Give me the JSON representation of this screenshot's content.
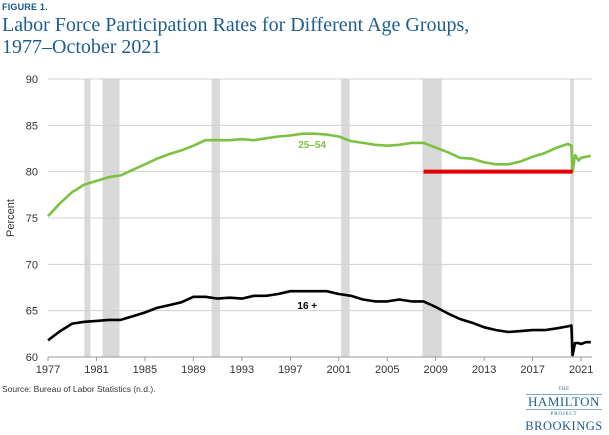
{
  "figure_label": "FIGURE 1.",
  "title_line1": "Labor Force Participation Rates for Different Age Groups,",
  "title_line2": "1977–October 2021",
  "source": "Source: Bureau of Labor Statistics (n.d.).",
  "logo": {
    "the": "THE",
    "hamilton": "HAMILTON",
    "project": "PROJECT",
    "brookings": "BROOKINGS"
  },
  "chart_data": {
    "type": "line",
    "xlabel": "",
    "ylabel": "Percent",
    "xlim": [
      1977,
      2021.9
    ],
    "ylim": [
      60,
      90
    ],
    "x_ticks": [
      1977,
      1981,
      1985,
      1989,
      1993,
      1997,
      2001,
      2005,
      2009,
      2013,
      2017,
      2021
    ],
    "y_ticks": [
      60,
      65,
      70,
      75,
      80,
      85,
      90
    ],
    "grid": "horizontal",
    "recessions": [
      [
        1980.0,
        1980.5
      ],
      [
        1981.5,
        1982.9
      ],
      [
        1990.5,
        1991.2
      ],
      [
        2001.2,
        2001.9
      ],
      [
        2007.9,
        2009.5
      ],
      [
        2020.1,
        2020.4
      ]
    ],
    "reference_line": {
      "y": 80.0,
      "x_start": 2008.0,
      "x_end": 2020.3,
      "color": "#e00000"
    },
    "series": [
      {
        "name": "25–54",
        "color": "#7cc242",
        "x": [
          1977.0,
          1978.0,
          1979.0,
          1980.0,
          1981.0,
          1982.0,
          1983.0,
          1984.0,
          1985.0,
          1986.0,
          1987.0,
          1988.0,
          1989.0,
          1990.0,
          1991.0,
          1992.0,
          1993.0,
          1994.0,
          1995.0,
          1996.0,
          1997.0,
          1998.0,
          1999.0,
          2000.0,
          2001.0,
          2002.0,
          2003.0,
          2004.0,
          2005.0,
          2006.0,
          2007.0,
          2008.0,
          2009.0,
          2010.0,
          2011.0,
          2012.0,
          2013.0,
          2014.0,
          2015.0,
          2016.0,
          2017.0,
          2018.0,
          2019.0,
          2019.9,
          2020.2,
          2020.3,
          2020.5,
          2020.8,
          2021.0,
          2021.4,
          2021.8
        ],
        "y": [
          75.2,
          76.6,
          77.8,
          78.6,
          79.0,
          79.4,
          79.6,
          80.2,
          80.8,
          81.4,
          81.9,
          82.3,
          82.8,
          83.4,
          83.4,
          83.4,
          83.5,
          83.4,
          83.6,
          83.8,
          83.9,
          84.1,
          84.1,
          84.0,
          83.8,
          83.3,
          83.1,
          82.9,
          82.8,
          82.9,
          83.1,
          83.1,
          82.6,
          82.1,
          81.5,
          81.4,
          81.0,
          80.8,
          80.8,
          81.1,
          81.6,
          82.0,
          82.6,
          83.0,
          82.8,
          80.0,
          81.8,
          81.2,
          81.5,
          81.6,
          81.7
        ]
      },
      {
        "name": "16 +",
        "color": "#000000",
        "x": [
          1977.0,
          1978.0,
          1979.0,
          1980.0,
          1981.0,
          1982.0,
          1983.0,
          1984.0,
          1985.0,
          1986.0,
          1987.0,
          1988.0,
          1989.0,
          1990.0,
          1991.0,
          1992.0,
          1993.0,
          1994.0,
          1995.0,
          1996.0,
          1997.0,
          1998.0,
          1999.0,
          2000.0,
          2001.0,
          2002.0,
          2003.0,
          2004.0,
          2005.0,
          2006.0,
          2007.0,
          2008.0,
          2009.0,
          2010.0,
          2011.0,
          2012.0,
          2013.0,
          2014.0,
          2015.0,
          2016.0,
          2017.0,
          2018.0,
          2019.0,
          2019.9,
          2020.2,
          2020.3,
          2020.5,
          2020.8,
          2021.0,
          2021.4,
          2021.8
        ],
        "y": [
          61.8,
          62.8,
          63.6,
          63.8,
          63.9,
          64.0,
          64.0,
          64.4,
          64.8,
          65.3,
          65.6,
          65.9,
          66.5,
          66.5,
          66.3,
          66.4,
          66.3,
          66.6,
          66.6,
          66.8,
          67.1,
          67.1,
          67.1,
          67.1,
          66.8,
          66.6,
          66.2,
          66.0,
          66.0,
          66.2,
          66.0,
          66.0,
          65.4,
          64.7,
          64.1,
          63.7,
          63.2,
          62.9,
          62.7,
          62.8,
          62.9,
          62.9,
          63.1,
          63.3,
          63.4,
          60.2,
          61.5,
          61.5,
          61.4,
          61.6,
          61.6
        ]
      }
    ],
    "annotations": [
      {
        "text": "25–54",
        "x": 1998.8,
        "y": 83.0,
        "color": "#7cc242"
      },
      {
        "text": "16 +",
        "x": 1998.4,
        "y": 65.6,
        "color": "#000000"
      }
    ]
  }
}
